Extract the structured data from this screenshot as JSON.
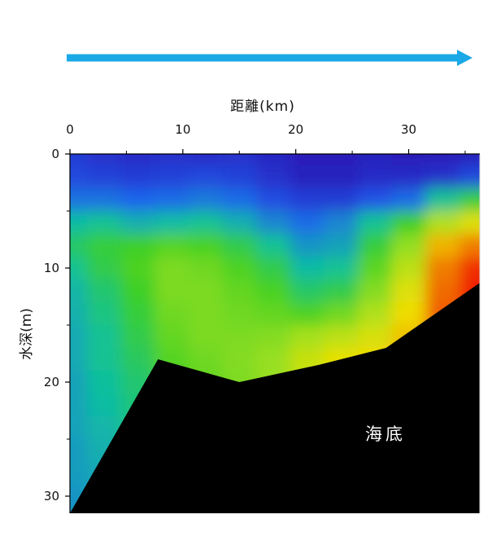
{
  "chart_data": {
    "type": "heatmap",
    "title": "",
    "xlabel": "距離(km)",
    "ylabel": "水深(m)",
    "xlim": [
      0,
      36.3
    ],
    "ylim": [
      0,
      31.5
    ],
    "y_inverted": true,
    "x_axis_position": "top",
    "x_ticks": [
      0,
      10,
      20,
      30
    ],
    "x_minor_ticks": [
      5,
      15,
      25,
      35
    ],
    "y_ticks": [
      0,
      10,
      20,
      30
    ],
    "y_minor_ticks": [
      5,
      15,
      25
    ],
    "direction_arrow": {
      "color": "#1ba8e6",
      "points": "right"
    },
    "annotation": "海底",
    "seabed_profile": [
      {
        "x": 0.0,
        "depth": 31.5
      },
      {
        "x": 7.8,
        "depth": 18.0
      },
      {
        "x": 15.0,
        "depth": 20.0
      },
      {
        "x": 22.0,
        "depth": 18.5
      },
      {
        "x": 28.0,
        "depth": 17.0
      },
      {
        "x": 36.3,
        "depth": 11.3
      }
    ],
    "colorscale": [
      "#2a10b0",
      "#2060f0",
      "#10c0a0",
      "#40d020",
      "#a0e020",
      "#f0e000",
      "#f08000",
      "#f00000"
    ],
    "value_grid": {
      "x": [
        0,
        3,
        6,
        9,
        12,
        15,
        18,
        21,
        24,
        27,
        30,
        33,
        36
      ],
      "depth": [
        0,
        2,
        4,
        6,
        8,
        10,
        12,
        14,
        16,
        18,
        20,
        22,
        24,
        26,
        28,
        30
      ],
      "values": [
        [
          0.08,
          0.06,
          0.05,
          0.06,
          0.05,
          0.06,
          0.04,
          0.02,
          0.02,
          0.03,
          0.02,
          0.02,
          0.03
        ],
        [
          0.1,
          0.09,
          0.08,
          0.09,
          0.1,
          0.09,
          0.06,
          0.03,
          0.03,
          0.05,
          0.05,
          0.06,
          0.1
        ],
        [
          0.17,
          0.17,
          0.15,
          0.16,
          0.18,
          0.16,
          0.11,
          0.08,
          0.08,
          0.12,
          0.16,
          0.3,
          0.4
        ],
        [
          0.28,
          0.3,
          0.26,
          0.28,
          0.3,
          0.26,
          0.2,
          0.16,
          0.2,
          0.3,
          0.42,
          0.6,
          0.68
        ],
        [
          0.35,
          0.4,
          0.42,
          0.46,
          0.44,
          0.38,
          0.3,
          0.22,
          0.24,
          0.4,
          0.55,
          0.78,
          0.86
        ],
        [
          0.3,
          0.38,
          0.45,
          0.52,
          0.5,
          0.45,
          0.38,
          0.28,
          0.3,
          0.47,
          0.62,
          0.86,
          0.95
        ],
        [
          0.27,
          0.34,
          0.42,
          0.52,
          0.52,
          0.48,
          0.44,
          0.35,
          0.38,
          0.53,
          0.68,
          0.88,
          0.97
        ],
        [
          0.26,
          0.32,
          0.4,
          0.5,
          0.52,
          0.5,
          0.48,
          0.45,
          0.5,
          0.6,
          0.72,
          0.9,
          0.97
        ],
        [
          0.25,
          0.3,
          0.38,
          0.48,
          0.52,
          0.52,
          0.53,
          0.58,
          0.62,
          0.67,
          0.76,
          0.9,
          0.97
        ],
        [
          0.25,
          0.3,
          0.36,
          0.46,
          0.5,
          0.53,
          0.56,
          0.64,
          0.7,
          0.72,
          0.8,
          0.9,
          0.97
        ],
        [
          0.24,
          0.29,
          0.34,
          0.44,
          0.48,
          0.52,
          0.56,
          0.64,
          0.7,
          0.72,
          0.8,
          0.9,
          0.97
        ],
        [
          0.24,
          0.28,
          0.33,
          0.42,
          0.48,
          0.52,
          0.56,
          0.64,
          0.7,
          0.72,
          0.8,
          0.9,
          0.97
        ],
        [
          0.24,
          0.27,
          0.32,
          0.4,
          0.48,
          0.52,
          0.56,
          0.64,
          0.7,
          0.72,
          0.8,
          0.9,
          0.97
        ],
        [
          0.23,
          0.26,
          0.31,
          0.38,
          0.48,
          0.52,
          0.56,
          0.64,
          0.7,
          0.72,
          0.8,
          0.9,
          0.97
        ],
        [
          0.23,
          0.25,
          0.3,
          0.36,
          0.48,
          0.52,
          0.56,
          0.64,
          0.7,
          0.72,
          0.8,
          0.9,
          0.97
        ],
        [
          0.22,
          0.24,
          0.29,
          0.35,
          0.48,
          0.52,
          0.56,
          0.64,
          0.7,
          0.72,
          0.8,
          0.9,
          0.97
        ]
      ]
    }
  }
}
